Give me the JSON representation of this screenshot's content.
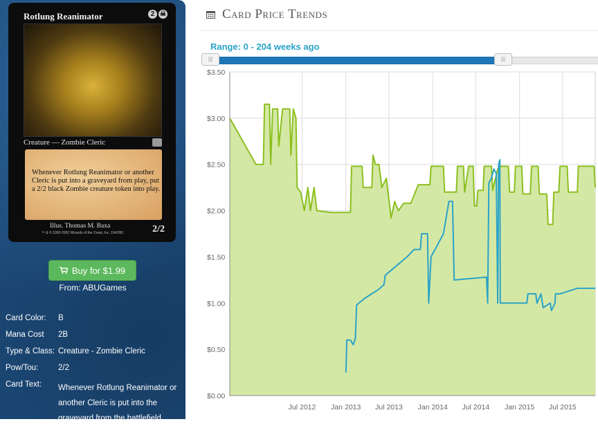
{
  "card": {
    "name": "Rotlung Reanimator",
    "mana_symbols": [
      "2",
      "☠"
    ],
    "type_line": "Creature — Zombie Cleric",
    "rules_text": "Whenever Rotlung Reanimator or another Cleric is put into a graveyard from play, put a 2/2 black Zombie creature token into play.",
    "illustrator": "Illus. Thomas M. Baxa",
    "legal": "™ & © 1993-2002 Wizards of the Coast, Inc. 164/350",
    "power_toughness": "2/2"
  },
  "buy": {
    "label": "Buy for $1.99",
    "seller": "From: ABUGames",
    "icon": "cart-icon"
  },
  "details": {
    "color": {
      "key": "Card Color:",
      "value": "B"
    },
    "mana_cost": {
      "key": "Mana Cost",
      "value": "2B"
    },
    "type_class": {
      "key": "Type & Class:",
      "value": "Creature - Zombie Cleric"
    },
    "pow_tou": {
      "key": "Pow/Tou:",
      "value": "2/2"
    },
    "text": {
      "key": "Card Text:",
      "value": "Whenever Rotlung Reanimator or another Cleric is put into the graveyard from the battlefield,"
    }
  },
  "header": {
    "title": "Card Price Trends",
    "icon": "calendar-icon"
  },
  "slider": {
    "label": "Range: 0 - 204 weeks ago",
    "handle_glyph": "|||",
    "min_weeks_ago": 0,
    "max_weeks_ago": 204
  },
  "colors": {
    "sidebar": "#1d4a78",
    "accent": "#2aa3c7",
    "green_series": "#8cbf1f",
    "green_fill": "#d4e8a6",
    "blue_series": "#2ba3c6",
    "buy_button": "#5cb85c"
  },
  "chart_data": {
    "type": "line",
    "x_type": "date",
    "xlim": [
      "2011-09-01",
      "2015-11-15"
    ],
    "ylim": [
      0,
      3.5
    ],
    "grid": true,
    "y_ticks": [
      "$0.00",
      "$0.50",
      "$1.00",
      "$1.50",
      "$2.00",
      "$2.50",
      "$3.00",
      "$3.50"
    ],
    "y_tick_values": [
      0,
      0.5,
      1.0,
      1.5,
      2.0,
      2.5,
      3.0,
      3.5
    ],
    "x_ticks": [
      "Jul 2012",
      "Jan 2013",
      "Jul 2013",
      "Jan 2014",
      "Jul 2014",
      "Jan 2015",
      "Jul 2015"
    ],
    "x_tick_dates": [
      "2012-07-01",
      "2013-01-01",
      "2013-07-01",
      "2014-01-01",
      "2014-07-01",
      "2015-01-01",
      "2015-07-01"
    ],
    "series": [
      {
        "color": "#8cbf1f",
        "filled": true,
        "points": [
          [
            "2011-09-01",
            3.0
          ],
          [
            "2011-12-20",
            2.5
          ],
          [
            "2012-01-20",
            2.5
          ],
          [
            "2012-01-25",
            3.15
          ],
          [
            "2012-02-15",
            3.15
          ],
          [
            "2012-02-20",
            2.5
          ],
          [
            "2012-02-28",
            3.1
          ],
          [
            "2012-03-20",
            3.1
          ],
          [
            "2012-03-25",
            2.7
          ],
          [
            "2012-04-10",
            3.1
          ],
          [
            "2012-05-10",
            3.1
          ],
          [
            "2012-05-15",
            2.6
          ],
          [
            "2012-05-25",
            3.1
          ],
          [
            "2012-06-05",
            3.0
          ],
          [
            "2012-06-10",
            2.25
          ],
          [
            "2012-06-25",
            2.2
          ],
          [
            "2012-07-10",
            2.0
          ],
          [
            "2012-07-25",
            2.25
          ],
          [
            "2012-08-05",
            2.0
          ],
          [
            "2012-08-20",
            2.25
          ],
          [
            "2012-09-01",
            2.0
          ],
          [
            "2012-11-01",
            1.98
          ],
          [
            "2013-01-20",
            1.98
          ],
          [
            "2013-01-25",
            2.48
          ],
          [
            "2013-03-10",
            2.48
          ],
          [
            "2013-03-15",
            2.25
          ],
          [
            "2013-04-20",
            2.25
          ],
          [
            "2013-04-25",
            2.6
          ],
          [
            "2013-05-05",
            2.5
          ],
          [
            "2013-05-20",
            2.5
          ],
          [
            "2013-06-01",
            2.25
          ],
          [
            "2013-06-20",
            2.35
          ],
          [
            "2013-07-10",
            1.92
          ],
          [
            "2013-07-25",
            2.1
          ],
          [
            "2013-08-10",
            2.0
          ],
          [
            "2013-09-01",
            2.08
          ],
          [
            "2013-10-01",
            2.08
          ],
          [
            "2013-11-01",
            2.28
          ],
          [
            "2013-12-20",
            2.28
          ],
          [
            "2013-12-25",
            2.48
          ],
          [
            "2014-02-15",
            2.48
          ],
          [
            "2014-02-20",
            2.2
          ],
          [
            "2014-04-10",
            2.2
          ],
          [
            "2014-04-15",
            2.48
          ],
          [
            "2014-05-10",
            2.48
          ],
          [
            "2014-05-15",
            2.2
          ],
          [
            "2014-06-01",
            2.48
          ],
          [
            "2014-06-20",
            2.48
          ],
          [
            "2014-06-25",
            2.05
          ],
          [
            "2014-07-05",
            2.05
          ],
          [
            "2014-07-10",
            2.22
          ],
          [
            "2014-08-01",
            2.22
          ],
          [
            "2014-08-05",
            2.48
          ],
          [
            "2014-09-05",
            2.48
          ],
          [
            "2014-09-10",
            2.22
          ],
          [
            "2014-10-01",
            2.45
          ],
          [
            "2014-10-15",
            2.48
          ],
          [
            "2014-11-15",
            2.48
          ],
          [
            "2014-11-20",
            2.2
          ],
          [
            "2014-12-10",
            2.2
          ],
          [
            "2014-12-15",
            2.48
          ],
          [
            "2015-01-10",
            2.48
          ],
          [
            "2015-01-15",
            2.18
          ],
          [
            "2015-02-15",
            2.18
          ],
          [
            "2015-02-20",
            2.48
          ],
          [
            "2015-03-20",
            2.48
          ],
          [
            "2015-03-25",
            2.18
          ],
          [
            "2015-04-25",
            2.18
          ],
          [
            "2015-05-01",
            1.85
          ],
          [
            "2015-05-20",
            1.85
          ],
          [
            "2015-05-25",
            2.2
          ],
          [
            "2015-06-15",
            2.2
          ],
          [
            "2015-06-20",
            2.48
          ],
          [
            "2015-07-20",
            2.48
          ],
          [
            "2015-07-25",
            2.2
          ],
          [
            "2015-09-01",
            2.2
          ],
          [
            "2015-09-05",
            2.48
          ],
          [
            "2015-11-10",
            2.48
          ],
          [
            "2015-11-15",
            2.25
          ]
        ]
      },
      {
        "color": "#2ba3c6",
        "filled": false,
        "points": [
          [
            "2013-01-01",
            0.25
          ],
          [
            "2013-01-05",
            0.6
          ],
          [
            "2013-01-20",
            0.6
          ],
          [
            "2013-02-01",
            0.55
          ],
          [
            "2013-02-10",
            0.62
          ],
          [
            "2013-02-15",
            0.98
          ],
          [
            "2013-03-20",
            1.05
          ],
          [
            "2013-05-20",
            1.15
          ],
          [
            "2013-06-10",
            1.2
          ],
          [
            "2013-06-15",
            1.3
          ],
          [
            "2013-09-15",
            1.5
          ],
          [
            "2013-10-15",
            1.58
          ],
          [
            "2013-11-10",
            1.58
          ],
          [
            "2013-11-15",
            1.75
          ],
          [
            "2013-12-10",
            1.75
          ],
          [
            "2013-12-15",
            1.0
          ],
          [
            "2013-12-25",
            1.5
          ],
          [
            "2014-01-15",
            1.6
          ],
          [
            "2014-02-15",
            1.75
          ],
          [
            "2014-02-25",
            1.9
          ],
          [
            "2014-03-10",
            2.1
          ],
          [
            "2014-03-25",
            2.1
          ],
          [
            "2014-04-01",
            1.25
          ],
          [
            "2014-08-15",
            1.28
          ],
          [
            "2014-08-20",
            1.0
          ],
          [
            "2014-08-25",
            2.3
          ],
          [
            "2014-09-05",
            2.35
          ],
          [
            "2014-09-15",
            2.45
          ],
          [
            "2014-09-25",
            2.4
          ],
          [
            "2014-10-01",
            1.0
          ],
          [
            "2014-10-05",
            2.5
          ],
          [
            "2014-10-10",
            2.55
          ],
          [
            "2014-10-12",
            1.0
          ],
          [
            "2015-02-01",
            1.0
          ],
          [
            "2015-02-05",
            1.1
          ],
          [
            "2015-03-10",
            1.1
          ],
          [
            "2015-03-15",
            1.0
          ],
          [
            "2015-04-01",
            1.1
          ],
          [
            "2015-04-10",
            0.95
          ],
          [
            "2015-05-10",
            1.0
          ],
          [
            "2015-05-15",
            0.92
          ],
          [
            "2015-05-30",
            1.0
          ],
          [
            "2015-06-01",
            1.1
          ],
          [
            "2015-06-20",
            1.1
          ],
          [
            "2015-07-15",
            1.12
          ],
          [
            "2015-09-01",
            1.16
          ],
          [
            "2015-11-15",
            1.16
          ]
        ]
      }
    ]
  }
}
